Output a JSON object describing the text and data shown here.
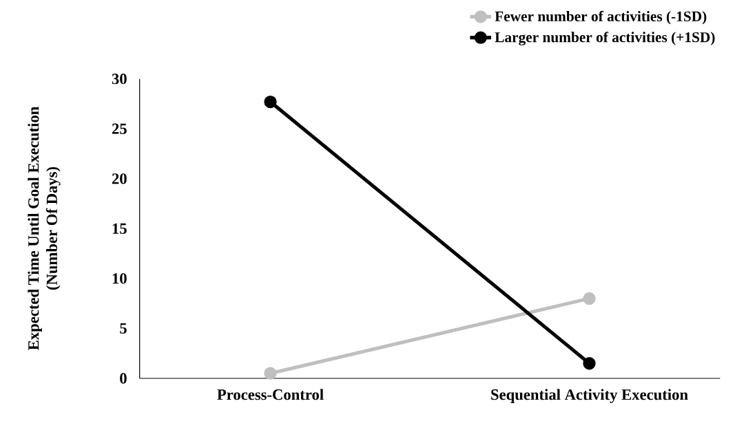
{
  "chart_data": {
    "type": "line",
    "ylabel": "Expected Time Until Goal Execution\n(Number Of Days)",
    "categories": [
      "Process-Control",
      "Sequential Activity Execution"
    ],
    "series": [
      {
        "name": "Fewer number of activities (-1SD)",
        "color": "#bfbfbf",
        "values": [
          0.5,
          8.0
        ]
      },
      {
        "name": "Larger number of activities (+1SD)",
        "color": "#000000",
        "values": [
          27.7,
          1.5
        ]
      }
    ],
    "ylim": [
      0,
      30
    ],
    "yticks": [
      0,
      5,
      10,
      15,
      20,
      25,
      30
    ],
    "grid": false,
    "legend": "top right",
    "marker": "circle",
    "line_style": "solid"
  }
}
